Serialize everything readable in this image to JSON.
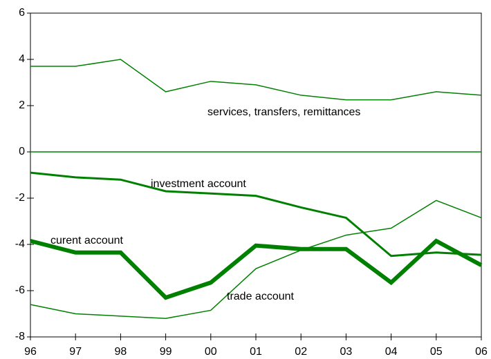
{
  "chart_data": {
    "type": "line",
    "categories": [
      "96",
      "97",
      "98",
      "99",
      "00",
      "01",
      "02",
      "03",
      "04",
      "05",
      "06"
    ],
    "series": [
      {
        "name": "services, transfers, remittances",
        "color": "#008000",
        "width": 1.5,
        "values": [
          3.7,
          3.7,
          4.0,
          2.6,
          3.05,
          2.9,
          2.45,
          2.25,
          2.25,
          2.6,
          2.45
        ]
      },
      {
        "name": "investment account",
        "color": "#008000",
        "width": 3,
        "values": [
          -0.9,
          -1.1,
          -1.2,
          -1.7,
          -1.8,
          -1.9,
          -2.4,
          -2.85,
          -4.5,
          -4.35,
          -4.45
        ]
      },
      {
        "name": "curent account",
        "color": "#008000",
        "width": 6,
        "values": [
          -3.85,
          -4.35,
          -4.35,
          -6.3,
          -5.65,
          -4.05,
          -4.2,
          -4.2,
          -5.65,
          -3.85,
          -4.9
        ]
      },
      {
        "name": "trade account",
        "color": "#008000",
        "width": 1.5,
        "values": [
          -6.6,
          -7.0,
          -7.1,
          -7.2,
          -6.85,
          -5.05,
          -4.25,
          -3.6,
          -3.3,
          -2.1,
          -2.85
        ]
      }
    ],
    "ylim": [
      -8,
      6
    ],
    "yticks": [
      -8,
      -6,
      -4,
      -2,
      0,
      2,
      4,
      6
    ],
    "zero_line": true,
    "zero_line_color": "#008000",
    "legend": "inline"
  }
}
